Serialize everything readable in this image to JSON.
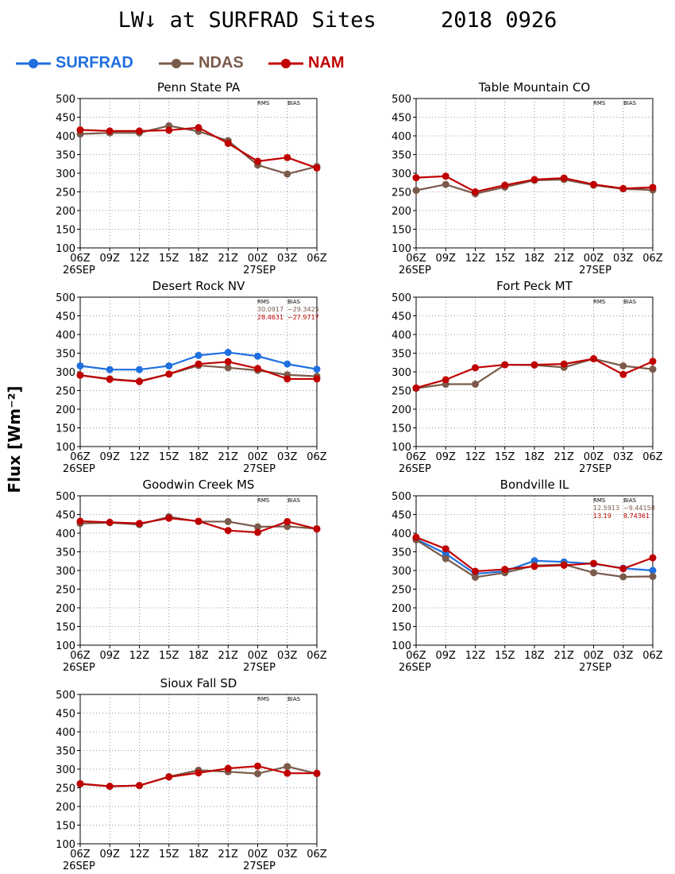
{
  "title": "LW↓ at SURFRAD Sites     2018 0926",
  "ylabel": "Flux [Wm⁻²]",
  "legend": [
    {
      "name": "SURFRAD",
      "color": "#1f6fe0"
    },
    {
      "name": "NDAS",
      "color": "#7a5a4a"
    },
    {
      "name": "NAM",
      "color": "#c00000"
    }
  ],
  "chart_data": [
    {
      "type": "line",
      "title": "Penn State PA",
      "x": [
        "06Z",
        "09Z",
        "12Z",
        "15Z",
        "18Z",
        "21Z",
        "00Z",
        "03Z",
        "06Z"
      ],
      "date_labels": [
        "26SEP",
        "27SEP"
      ],
      "ylim": [
        100,
        500
      ],
      "yticks": [
        100,
        150,
        200,
        250,
        300,
        350,
        400,
        450,
        500
      ],
      "grid": true,
      "stats_header": [
        "RMS",
        "BIAS"
      ],
      "stats": [],
      "series": [
        {
          "name": "SURFRAD",
          "values": [
            null,
            null,
            null,
            null,
            null,
            null,
            null,
            null,
            null
          ]
        },
        {
          "name": "NDAS",
          "values": [
            405,
            408,
            408,
            427,
            412,
            387,
            322,
            298,
            318
          ]
        },
        {
          "name": "NAM",
          "values": [
            416,
            413,
            413,
            415,
            422,
            380,
            332,
            342,
            314
          ]
        }
      ]
    },
    {
      "type": "line",
      "title": "Table Mountain CO",
      "x": [
        "06Z",
        "09Z",
        "12Z",
        "15Z",
        "18Z",
        "21Z",
        "00Z",
        "03Z",
        "06Z"
      ],
      "date_labels": [
        "26SEP",
        "27SEP"
      ],
      "ylim": [
        100,
        500
      ],
      "yticks": [
        100,
        150,
        200,
        250,
        300,
        350,
        400,
        450,
        500
      ],
      "grid": true,
      "stats_header": [
        "RMS",
        "BIAS"
      ],
      "stats": [],
      "series": [
        {
          "name": "SURFRAD",
          "values": [
            null,
            null,
            null,
            null,
            null,
            null,
            null,
            null,
            null
          ]
        },
        {
          "name": "NDAS",
          "values": [
            254,
            270,
            245,
            263,
            281,
            283,
            268,
            258,
            255
          ]
        },
        {
          "name": "NAM",
          "values": [
            288,
            292,
            250,
            268,
            283,
            287,
            270,
            259,
            262
          ]
        }
      ]
    },
    {
      "type": "line",
      "title": "Desert Rock NV",
      "x": [
        "06Z",
        "09Z",
        "12Z",
        "15Z",
        "18Z",
        "21Z",
        "00Z",
        "03Z",
        "06Z"
      ],
      "date_labels": [
        "26SEP",
        "27SEP"
      ],
      "ylim": [
        100,
        500
      ],
      "yticks": [
        100,
        150,
        200,
        250,
        300,
        350,
        400,
        450,
        500
      ],
      "grid": true,
      "stats_header": [
        "RMS",
        "BIAS"
      ],
      "stats": [
        {
          "rms": "30.0917",
          "bias": "−29.3425",
          "color": "#7a5a4a"
        },
        {
          "rms": "28.4631",
          "bias": "−27.9717",
          "color": "#c00000"
        }
      ],
      "series": [
        {
          "name": "SURFRAD",
          "values": [
            316,
            306,
            306,
            316,
            344,
            352,
            342,
            321,
            307
          ]
        },
        {
          "name": "NDAS",
          "values": [
            291,
            281,
            275,
            294,
            317,
            311,
            304,
            292,
            288
          ]
        },
        {
          "name": "NAM",
          "values": [
            291,
            280,
            274,
            294,
            321,
            327,
            309,
            281,
            281
          ]
        }
      ]
    },
    {
      "type": "line",
      "title": "Fort Peck MT",
      "x": [
        "06Z",
        "09Z",
        "12Z",
        "15Z",
        "18Z",
        "21Z",
        "00Z",
        "03Z",
        "06Z"
      ],
      "date_labels": [
        "26SEP",
        "27SEP"
      ],
      "ylim": [
        100,
        500
      ],
      "yticks": [
        100,
        150,
        200,
        250,
        300,
        350,
        400,
        450,
        500
      ],
      "grid": true,
      "stats_header": [
        "RMS",
        "BIAS"
      ],
      "stats": [],
      "series": [
        {
          "name": "SURFRAD",
          "values": [
            null,
            null,
            null,
            null,
            null,
            null,
            null,
            null,
            null
          ]
        },
        {
          "name": "NDAS",
          "values": [
            256,
            267,
            267,
            319,
            318,
            312,
            335,
            316,
            307
          ]
        },
        {
          "name": "NAM",
          "values": [
            257,
            279,
            311,
            319,
            319,
            321,
            335,
            293,
            328
          ]
        }
      ]
    },
    {
      "type": "line",
      "title": "Goodwin Creek MS",
      "x": [
        "06Z",
        "09Z",
        "12Z",
        "15Z",
        "18Z",
        "21Z",
        "00Z",
        "03Z",
        "06Z"
      ],
      "date_labels": [
        "26SEP",
        "27SEP"
      ],
      "ylim": [
        100,
        500
      ],
      "yticks": [
        100,
        150,
        200,
        250,
        300,
        350,
        400,
        450,
        500
      ],
      "grid": true,
      "stats_header": [
        "RMS",
        "BIAS"
      ],
      "stats": [],
      "series": [
        {
          "name": "SURFRAD",
          "values": [
            null,
            null,
            null,
            null,
            null,
            null,
            null,
            null,
            null
          ]
        },
        {
          "name": "NDAS",
          "values": [
            426,
            428,
            423,
            444,
            431,
            431,
            417,
            418,
            412
          ]
        },
        {
          "name": "NAM",
          "values": [
            432,
            429,
            426,
            440,
            432,
            407,
            402,
            431,
            411
          ]
        }
      ]
    },
    {
      "type": "line",
      "title": "Bondville IL",
      "x": [
        "06Z",
        "09Z",
        "12Z",
        "15Z",
        "18Z",
        "21Z",
        "00Z",
        "03Z",
        "06Z"
      ],
      "date_labels": [
        "26SEP",
        "27SEP"
      ],
      "ylim": [
        100,
        500
      ],
      "yticks": [
        100,
        150,
        200,
        250,
        300,
        350,
        400,
        450,
        500
      ],
      "grid": true,
      "stats_header": [
        "RMS",
        "BIAS"
      ],
      "stats": [
        {
          "rms": "12.5913",
          "bias": "−9.44158",
          "color": "#7a5a4a"
        },
        {
          "rms": "13.19",
          "bias": "8.74361",
          "color": "#c00000"
        }
      ],
      "series": [
        {
          "name": "SURFRAD",
          "values": [
            384,
            345,
            291,
            298,
            326,
            323,
            318,
            306,
            300
          ]
        },
        {
          "name": "NDAS",
          "values": [
            382,
            332,
            282,
            294,
            313,
            316,
            294,
            283,
            284
          ]
        },
        {
          "name": "NAM",
          "values": [
            389,
            358,
            298,
            303,
            311,
            314,
            319,
            305,
            334
          ]
        }
      ]
    },
    {
      "type": "line",
      "title": "Sioux Fall SD",
      "x": [
        "06Z",
        "09Z",
        "12Z",
        "15Z",
        "18Z",
        "21Z",
        "00Z",
        "03Z",
        "06Z"
      ],
      "date_labels": [
        "26SEP",
        "27SEP"
      ],
      "ylim": [
        100,
        500
      ],
      "yticks": [
        100,
        150,
        200,
        250,
        300,
        350,
        400,
        450,
        500
      ],
      "grid": true,
      "stats_header": [
        "RMS",
        "BIAS"
      ],
      "stats": [],
      "series": [
        {
          "name": "SURFRAD",
          "values": [
            null,
            null,
            null,
            null,
            null,
            null,
            null,
            null,
            null
          ]
        },
        {
          "name": "NDAS",
          "values": [
            260,
            254,
            256,
            280,
            297,
            293,
            288,
            307,
            288
          ]
        },
        {
          "name": "NAM",
          "values": [
            261,
            254,
            256,
            279,
            290,
            302,
            308,
            289,
            289
          ]
        }
      ]
    }
  ]
}
